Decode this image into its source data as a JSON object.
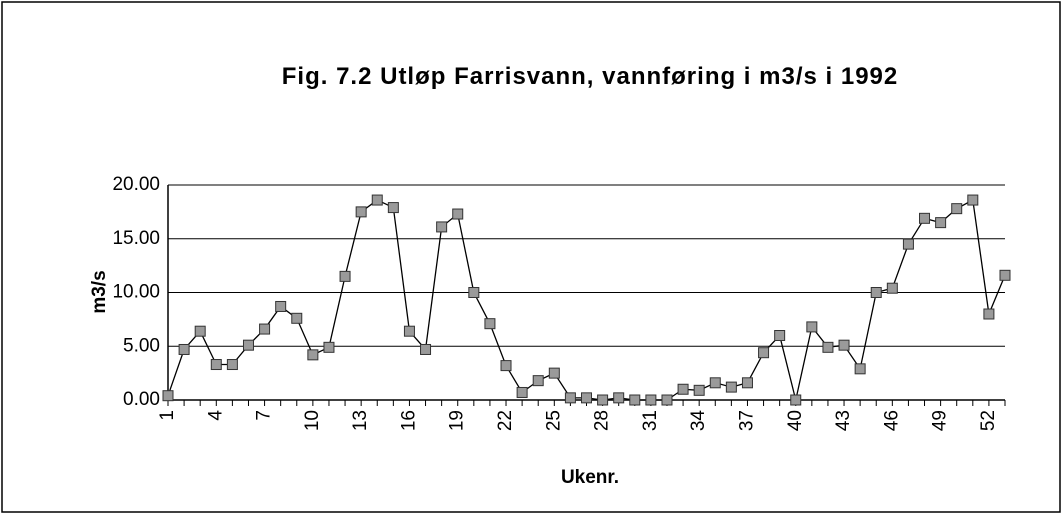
{
  "chart_data": {
    "type": "line",
    "title": "Fig. 7.2 Utløp Farrisvann, vannføring i m3/s i 1992",
    "x_label": "Ukenr.",
    "y_label": "m3/s",
    "categories": [
      "1",
      null,
      null,
      "4",
      null,
      null,
      "7",
      null,
      null,
      "10",
      null,
      null,
      "13",
      null,
      null,
      "16",
      null,
      null,
      "19",
      null,
      null,
      "22",
      null,
      null,
      "25",
      null,
      null,
      "28",
      null,
      null,
      "31",
      null,
      null,
      "34",
      null,
      null,
      "37",
      null,
      null,
      "40",
      null,
      null,
      "43",
      null,
      null,
      "46",
      null,
      null,
      "49",
      null,
      null,
      "52",
      null
    ],
    "series": [
      {
        "name": "vannføring",
        "color": "#000000",
        "marker_color": "#9a9a9a",
        "values": [
          0.4,
          4.7,
          6.4,
          3.3,
          3.3,
          5.1,
          6.6,
          8.7,
          7.6,
          4.2,
          4.9,
          11.5,
          17.5,
          18.6,
          17.9,
          6.4,
          4.7,
          16.1,
          17.3,
          10.0,
          7.1,
          3.2,
          0.7,
          1.8,
          2.5,
          0.2,
          0.2,
          0.0,
          0.2,
          0.0,
          0.0,
          0.0,
          1.0,
          0.9,
          1.6,
          1.2,
          1.6,
          4.4,
          6.0,
          0.0,
          6.8,
          4.9,
          5.1,
          2.9,
          10.0,
          10.4,
          14.5,
          16.9,
          16.5,
          17.8,
          18.6,
          8.0,
          11.6
        ]
      }
    ],
    "ylim": [
      0,
      20
    ],
    "yticks": [
      {
        "value": 0,
        "label": "0.00"
      },
      {
        "value": 5,
        "label": "5.00"
      },
      {
        "value": 10,
        "label": "10.00"
      },
      {
        "value": 15,
        "label": "15.00"
      },
      {
        "value": 20,
        "label": "20.00"
      }
    ],
    "grid": true
  }
}
